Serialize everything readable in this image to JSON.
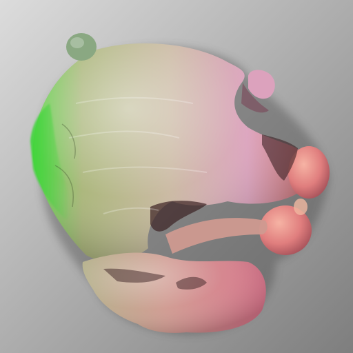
{
  "scene": {
    "background": {
      "gradient_light": "#dcdcdc",
      "gradient_dark": "#7e7e7e"
    },
    "surface": {
      "color_left": "#5fd44a",
      "color_left_mid": "#a8b477",
      "color_center": "#c9b7a0",
      "color_right_top": "#dca2bd",
      "color_right": "#e07e7e",
      "color_bottom": "#d97289",
      "shadow": "#3c2224"
    },
    "object": {
      "description_icon": "molecular-surface-blob",
      "lobes": 4
    }
  }
}
